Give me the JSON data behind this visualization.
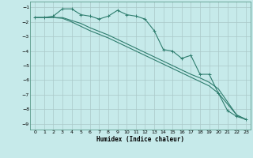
{
  "xlabel": "Humidex (Indice chaleur)",
  "bg_color": "#c6eaea",
  "grid_color": "#aac8c8",
  "line_color": "#2e7d6e",
  "xlim": [
    -0.5,
    23.5
  ],
  "ylim": [
    -9.4,
    -0.6
  ],
  "xticks": [
    0,
    1,
    2,
    3,
    4,
    5,
    6,
    7,
    8,
    9,
    10,
    11,
    12,
    13,
    14,
    15,
    16,
    17,
    18,
    19,
    20,
    21,
    22,
    23
  ],
  "yticks": [
    -1,
    -2,
    -3,
    -4,
    -5,
    -6,
    -7,
    -8,
    -9
  ],
  "series1_x": [
    0,
    1,
    2,
    3,
    4,
    5,
    6,
    7,
    8,
    9,
    10,
    11,
    12,
    13,
    14,
    15,
    16,
    17,
    18,
    19,
    20,
    21,
    22,
    23
  ],
  "series1_y": [
    -1.7,
    -1.7,
    -1.6,
    -1.1,
    -1.1,
    -1.5,
    -1.6,
    -1.8,
    -1.6,
    -1.2,
    -1.5,
    -1.6,
    -1.8,
    -2.6,
    -3.9,
    -4.0,
    -4.5,
    -4.3,
    -5.6,
    -5.6,
    -6.9,
    -8.1,
    -8.5,
    -8.7
  ],
  "series2_x": [
    0,
    1,
    2,
    3,
    4,
    5,
    6,
    7,
    8,
    9,
    10,
    11,
    12,
    13,
    14,
    15,
    16,
    17,
    18,
    19,
    20,
    21,
    22,
    23
  ],
  "series2_y": [
    -1.7,
    -1.7,
    -1.7,
    -1.7,
    -1.9,
    -2.1,
    -2.4,
    -2.65,
    -2.9,
    -3.2,
    -3.5,
    -3.8,
    -4.1,
    -4.4,
    -4.7,
    -5.0,
    -5.3,
    -5.6,
    -5.85,
    -6.15,
    -6.6,
    -7.5,
    -8.4,
    -8.7
  ],
  "series3_x": [
    0,
    1,
    2,
    3,
    4,
    5,
    6,
    7,
    8,
    9,
    10,
    11,
    12,
    13,
    14,
    15,
    16,
    17,
    18,
    19,
    20,
    21,
    22,
    23
  ],
  "series3_y": [
    -1.7,
    -1.7,
    -1.7,
    -1.75,
    -2.0,
    -2.3,
    -2.6,
    -2.85,
    -3.1,
    -3.4,
    -3.7,
    -4.0,
    -4.3,
    -4.6,
    -4.9,
    -5.2,
    -5.5,
    -5.8,
    -6.1,
    -6.4,
    -6.9,
    -7.65,
    -8.4,
    -8.7
  ]
}
